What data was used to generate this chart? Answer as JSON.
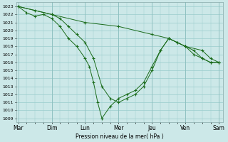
{
  "background_color": "#cce8e8",
  "grid_color": "#99cccc",
  "line_color": "#1a6b1a",
  "xlabel": "Pression niveau de la mer( hPa )",
  "day_labels": [
    "Mar",
    "Dim",
    "Lun",
    "Mer",
    "Jeu",
    "Ven",
    "Sam"
  ],
  "day_x": [
    0,
    8,
    16,
    24,
    32,
    40,
    48
  ],
  "xlim": [
    -0.5,
    49
  ],
  "ylim": [
    1008.5,
    1023.5
  ],
  "ytick_min": 1009,
  "ytick_max": 1023,
  "line1_x": [
    0,
    8,
    16,
    24,
    32,
    36,
    40,
    44,
    46,
    48
  ],
  "line1_y": [
    1023,
    1022,
    1021,
    1020.5,
    1019.5,
    1019.0,
    1018.0,
    1017.5,
    1016.5,
    1016.0
  ],
  "line2_x": [
    0,
    2,
    4,
    6,
    8,
    10,
    12,
    14,
    16,
    17,
    18,
    19,
    20,
    22,
    24,
    26,
    28,
    30,
    32,
    34,
    36,
    38,
    40,
    42,
    44,
    46,
    48
  ],
  "line2_y": [
    1023,
    1022.2,
    1021.8,
    1022,
    1021.5,
    1020.5,
    1019.0,
    1018.0,
    1016.5,
    1015.5,
    1013.5,
    1011.0,
    1009.0,
    1010.5,
    1011.5,
    1012.0,
    1012.5,
    1013.5,
    1015.5,
    1017.5,
    1019.0,
    1018.5,
    1018.0,
    1017.0,
    1016.5,
    1016.0,
    1016.0
  ],
  "line3_x": [
    0,
    4,
    8,
    10,
    12,
    14,
    16,
    18,
    20,
    22,
    24,
    26,
    28,
    30,
    32,
    34,
    36,
    38,
    40,
    42,
    44,
    46,
    48
  ],
  "line3_y": [
    1023,
    1022.5,
    1022,
    1021.5,
    1020.5,
    1019.5,
    1018.5,
    1016.5,
    1013.0,
    1011.5,
    1011.0,
    1011.5,
    1012.0,
    1013.0,
    1015.0,
    1017.5,
    1019.0,
    1018.5,
    1018.0,
    1017.5,
    1016.5,
    1016.0,
    1016.0
  ]
}
